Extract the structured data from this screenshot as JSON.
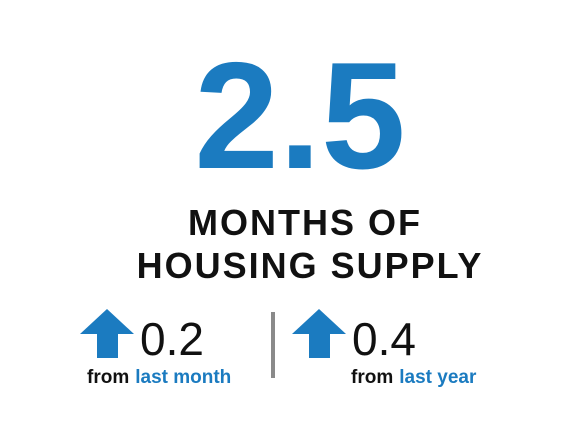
{
  "headline": {
    "value": "2.5",
    "label_lines": [
      "MONTHS OF",
      "HOUSING SUPPLY"
    ]
  },
  "changes": [
    {
      "value": "0.2",
      "prefix": "from",
      "period": "last month"
    },
    {
      "value": "0.4",
      "prefix": "from",
      "period": "last year"
    }
  ]
}
